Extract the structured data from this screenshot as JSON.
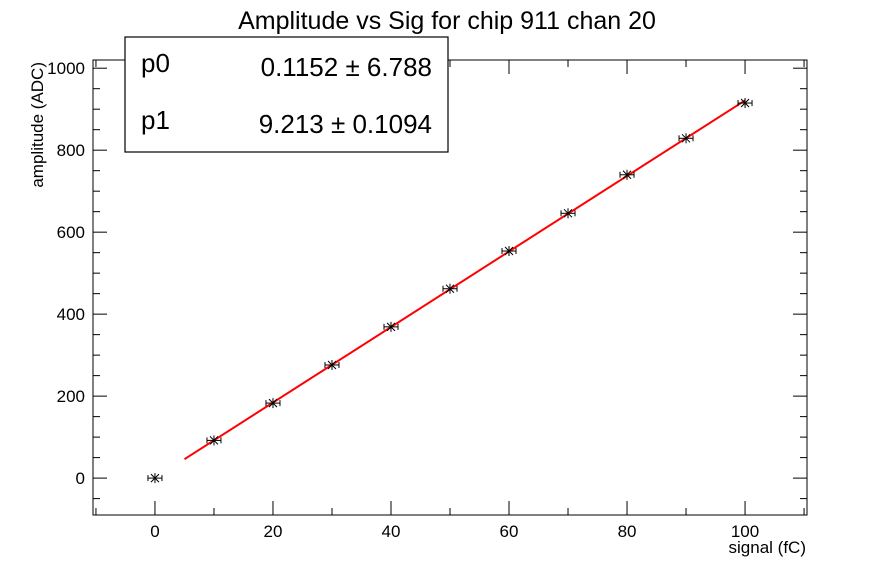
{
  "chart_data": {
    "type": "scatter",
    "title": "Amplitude vs Sig for chip 911 chan 20",
    "xlabel": "signal (fC)",
    "ylabel": "amplitude (ADC)",
    "xlim": [
      -10.5,
      110.5
    ],
    "ylim": [
      -90,
      1020
    ],
    "x_ticks": [
      0,
      20,
      40,
      60,
      80,
      100
    ],
    "y_ticks": [
      0,
      200,
      400,
      600,
      800,
      1000
    ],
    "grid": false,
    "points": {
      "x": [
        0,
        10,
        20,
        30,
        40,
        50,
        60,
        70,
        80,
        90,
        100
      ],
      "y": [
        0,
        92,
        183,
        276,
        369,
        462,
        554,
        646,
        740,
        829,
        915
      ]
    },
    "fit": {
      "p0": 0.1152,
      "p1": 9.213,
      "x_range": [
        5,
        100
      ],
      "color": "#ff0000"
    },
    "stats_box": {
      "rows": [
        {
          "name": "p0",
          "value": "0.1152 ± 6.788"
        },
        {
          "name": "p1",
          "value": "9.213 ± 0.1094"
        }
      ]
    }
  }
}
